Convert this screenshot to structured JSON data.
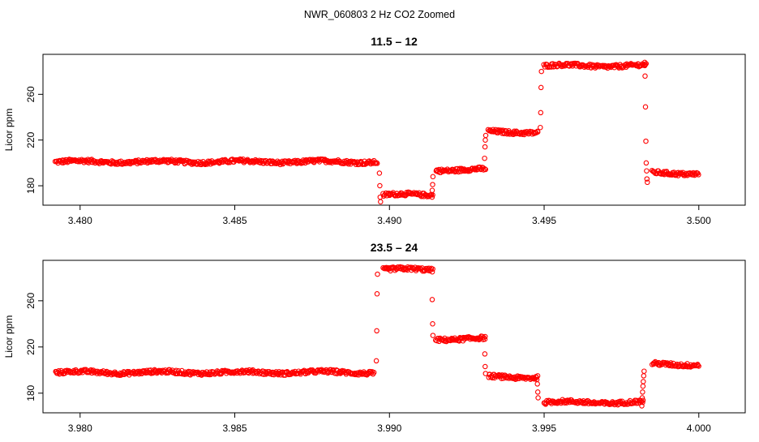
{
  "figure_title": "NWR_060803  2 Hz CO2 Zoomed",
  "colors": {
    "points": "#ff0000",
    "frame": "#000000"
  },
  "chart_data": [
    {
      "type": "scatter",
      "title": "11.5 – 12",
      "xlabel": "",
      "ylabel": "Licor ppm",
      "xlim": [
        3.4788,
        3.5015
      ],
      "ylim": [
        163,
        295
      ],
      "xticks": [
        3.48,
        3.485,
        3.49,
        3.495,
        3.5
      ],
      "xtick_labels": [
        "3.480",
        "3.485",
        "3.490",
        "3.495",
        "3.500"
      ],
      "yticks": [
        180,
        220,
        260
      ],
      "ytick_labels": [
        "180",
        "220",
        "260"
      ],
      "grid": false,
      "legend": "none",
      "segments": [
        {
          "x0": 3.4792,
          "x1": 3.4896,
          "y": 201
        },
        {
          "x0": 3.4898,
          "x1": 3.4914,
          "y": 172
        },
        {
          "x0": 3.4915,
          "x1": 3.4931,
          "y": 194
        },
        {
          "x0": 3.4932,
          "x1": 3.4948,
          "y": 227
        },
        {
          "x0": 3.495,
          "x1": 3.4983,
          "y": 285
        },
        {
          "x0": 3.4985,
          "x1": 3.5,
          "y": 191
        }
      ],
      "transitions": [
        {
          "x": 3.4897,
          "y": [
            191,
            180,
            170,
            166
          ]
        },
        {
          "x": 3.4914,
          "y": [
            176,
            181,
            188
          ]
        },
        {
          "x": 3.4931,
          "y": [
            204,
            214,
            220,
            224
          ]
        },
        {
          "x": 3.4949,
          "y": [
            231,
            244,
            266,
            280
          ]
        },
        {
          "x": 3.4983,
          "y": [
            288,
            276,
            249,
            219,
            200,
            193,
            186,
            183
          ]
        }
      ]
    },
    {
      "type": "scatter",
      "title": "23.5 – 24",
      "xlabel": "",
      "ylabel": "Licor ppm",
      "xlim": [
        3.9788,
        4.0015
      ],
      "ylim": [
        163,
        295
      ],
      "xticks": [
        3.98,
        3.985,
        3.99,
        3.995,
        4.0
      ],
      "xtick_labels": [
        "3.980",
        "3.985",
        "3.990",
        "3.995",
        "4.000"
      ],
      "yticks": [
        180,
        220,
        260
      ],
      "ytick_labels": [
        "180",
        "220",
        "260"
      ],
      "grid": false,
      "legend": "none",
      "segments": [
        {
          "x0": 3.9792,
          "x1": 3.9895,
          "y": 198
        },
        {
          "x0": 3.9898,
          "x1": 3.9914,
          "y": 287
        },
        {
          "x0": 3.9915,
          "x1": 3.9931,
          "y": 227
        },
        {
          "x0": 3.9932,
          "x1": 3.9948,
          "y": 194
        },
        {
          "x0": 3.995,
          "x1": 3.9982,
          "y": 172
        },
        {
          "x0": 3.9985,
          "x1": 4.0,
          "y": 205
        }
      ],
      "transitions": [
        {
          "x": 3.9896,
          "y": [
            208,
            234,
            266,
            283
          ]
        },
        {
          "x": 3.9914,
          "y": [
            261,
            240,
            230
          ]
        },
        {
          "x": 3.9931,
          "y": [
            214,
            203,
            197
          ]
        },
        {
          "x": 3.9948,
          "y": [
            188,
            181,
            176
          ]
        },
        {
          "x": 3.9982,
          "y": [
            169,
            176,
            181,
            186,
            190,
            195,
            199
          ]
        }
      ]
    }
  ]
}
